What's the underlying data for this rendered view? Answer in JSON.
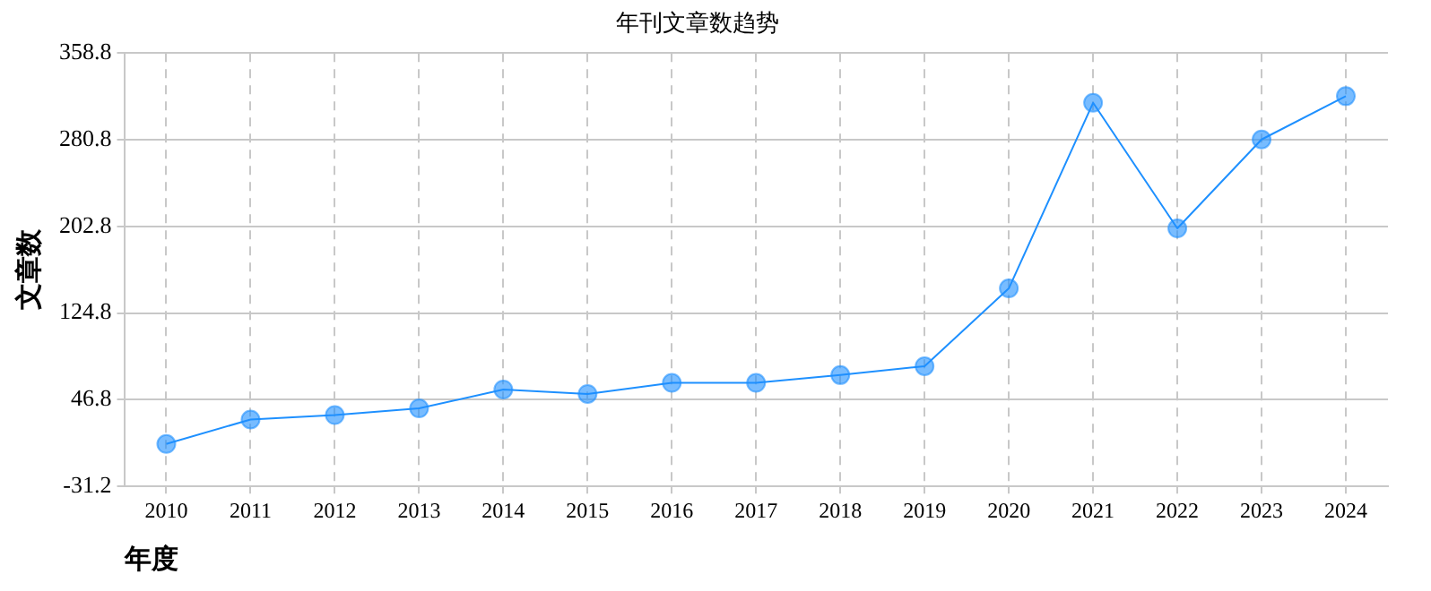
{
  "chart_data": {
    "type": "line",
    "title": "年刊文章数趋势",
    "xlabel": "年度",
    "ylabel": "文章数",
    "categories": [
      "2010",
      "2011",
      "2012",
      "2013",
      "2014",
      "2015",
      "2016",
      "2017",
      "2018",
      "2019",
      "2020",
      "2021",
      "2022",
      "2023",
      "2024"
    ],
    "series": [
      {
        "color": "#1e90ff",
        "values": [
          7,
          29,
          33,
          39,
          56,
          52,
          62,
          62,
          69,
          77,
          147,
          314,
          201,
          281,
          320
        ]
      }
    ],
    "ylim": [
      -31.2,
      358.8
    ],
    "yticks": [
      -31.2,
      46.8,
      124.8,
      202.8,
      280.8,
      358.8
    ],
    "grid": true,
    "legend": false,
    "marker": "circle",
    "line_style": "solid"
  }
}
